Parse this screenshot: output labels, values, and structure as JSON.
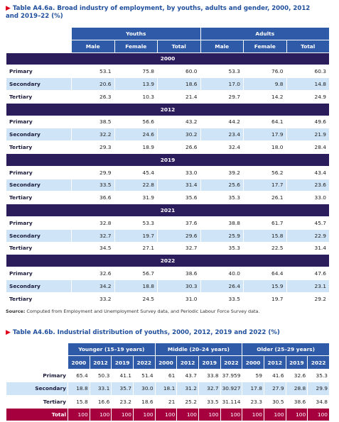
{
  "table_a": {
    "title": "Table A4.6a. Broad industry of employment, by youths, adults and gender, 2000, 2012 and 2019–22 (%)",
    "groups": [
      "Youths",
      "Adults"
    ],
    "columns": [
      "Male",
      "Female",
      "Total",
      "Male",
      "Female",
      "Total"
    ],
    "sections": [
      {
        "year": "2000",
        "rows": [
          {
            "label": "Primary",
            "values": [
              "53.1",
              "75.8",
              "60.0",
              "53.3",
              "76.0",
              "60.3"
            ]
          },
          {
            "label": "Secondary",
            "values": [
              "20.6",
              "13.9",
              "18.6",
              "17.0",
              "9.8",
              "14.8"
            ]
          },
          {
            "label": "Tertiary",
            "values": [
              "26.3",
              "10.3",
              "21.4",
              "29.7",
              "14.2",
              "24.9"
            ]
          }
        ]
      },
      {
        "year": "2012",
        "rows": [
          {
            "label": "Primary",
            "values": [
              "38.5",
              "56.6",
              "43.2",
              "44.2",
              "64.1",
              "49.6"
            ]
          },
          {
            "label": "Secondary",
            "values": [
              "32.2",
              "24.6",
              "30.2",
              "23.4",
              "17.9",
              "21.9"
            ]
          },
          {
            "label": "Tertiary",
            "values": [
              "29.3",
              "18.9",
              "26.6",
              "32.4",
              "18.0",
              "28.4"
            ]
          }
        ]
      },
      {
        "year": "2019",
        "rows": [
          {
            "label": "Primary",
            "values": [
              "29.9",
              "45.4",
              "33.0",
              "39.2",
              "56.2",
              "43.4"
            ]
          },
          {
            "label": "Secondary",
            "values": [
              "33.5",
              "22.8",
              "31.4",
              "25.6",
              "17.7",
              "23.6"
            ]
          },
          {
            "label": "Tertiary",
            "values": [
              "36.6",
              "31.9",
              "35.6",
              "35.3",
              "26.1",
              "33.0"
            ]
          }
        ]
      },
      {
        "year": "2021",
        "rows": [
          {
            "label": "Primary",
            "values": [
              "32.8",
              "53.3",
              "37.6",
              "38.8",
              "61.7",
              "45.7"
            ]
          },
          {
            "label": "Secondary",
            "values": [
              "32.7",
              "19.7",
              "29.6",
              "25.9",
              "15.8",
              "22.9"
            ]
          },
          {
            "label": "Tertiary",
            "values": [
              "34.5",
              "27.1",
              "32.7",
              "35.3",
              "22.5",
              "31.4"
            ]
          }
        ]
      },
      {
        "year": "2022",
        "rows": [
          {
            "label": "Primary",
            "values": [
              "32.6",
              "56.7",
              "38.6",
              "40.0",
              "64.4",
              "47.6"
            ]
          },
          {
            "label": "Secondary",
            "values": [
              "34.2",
              "18.8",
              "30.3",
              "26.4",
              "15.9",
              "23.1"
            ]
          },
          {
            "label": "Tertiary",
            "values": [
              "33.2",
              "24.5",
              "31.0",
              "33.5",
              "19.7",
              "29.2"
            ]
          }
        ]
      }
    ]
  },
  "source": {
    "label": "Source:",
    "text": "Computed from Employment and Unemployment Survey data, and Periodic Labour Force Survey data."
  },
  "table_b": {
    "title": "Table A4.6b. Industrial distribution of youths, 2000, 2012, 2019 and 2022 (%)",
    "groups": [
      "Younger (15–19 years)",
      "Middle (20–24 years)",
      "Older (25–29 years)"
    ],
    "columns": [
      "2000",
      "2012",
      "2019",
      "2022",
      "2000",
      "2012",
      "2019",
      "2022",
      "2000",
      "2012",
      "2019",
      "2022"
    ],
    "rows": [
      {
        "label": "Primary",
        "values": [
          "65.4",
          "50.3",
          "41.1",
          "51.4",
          "61",
          "43.7",
          "33.8",
          "37.959",
          "59",
          "41.6",
          "32.6",
          "35.3"
        ]
      },
      {
        "label": "Secondary",
        "values": [
          "18.8",
          "33.1",
          "35.7",
          "30.0",
          "18.1",
          "31.2",
          "32.7",
          "30.927",
          "17.8",
          "27.9",
          "28.8",
          "29.9"
        ]
      },
      {
        "label": "Tertiary",
        "values": [
          "15.8",
          "16.6",
          "23.2",
          "18.6",
          "21",
          "25.2",
          "33.5",
          "31.114",
          "23.3",
          "30.5",
          "38.6",
          "34.8"
        ]
      },
      {
        "label": "Total",
        "values": [
          "100",
          "100",
          "100",
          "100",
          "100",
          "100",
          "100",
          "100",
          "100",
          "100",
          "100",
          "100"
        ]
      }
    ]
  }
}
